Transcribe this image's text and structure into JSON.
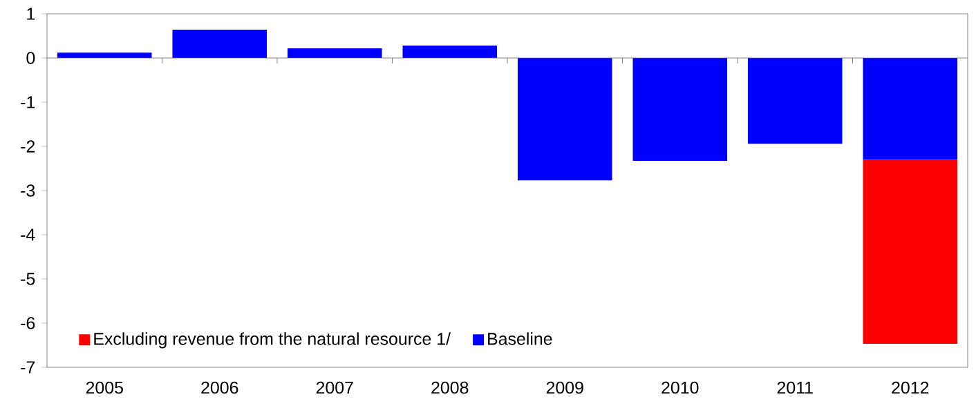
{
  "chart_data": {
    "type": "bar",
    "stacked": true,
    "categories": [
      "2005",
      "2006",
      "2007",
      "2008",
      "2009",
      "2010",
      "2011",
      "2012"
    ],
    "series": [
      {
        "name": "Baseline",
        "color": "#0000ff",
        "values": [
          0.12,
          0.64,
          0.22,
          0.28,
          -2.77,
          -2.33,
          -1.94,
          -2.3
        ]
      },
      {
        "name": "Excluding revenue from the natural resource 1/",
        "color": "#ff0000",
        "values": [
          null,
          null,
          null,
          null,
          null,
          null,
          null,
          -4.17
        ]
      }
    ],
    "ylim": [
      -7,
      1
    ],
    "yticks": [
      -7,
      -6,
      -5,
      -4,
      -3,
      -2,
      -1,
      0,
      1
    ],
    "legend": "bottom left"
  }
}
